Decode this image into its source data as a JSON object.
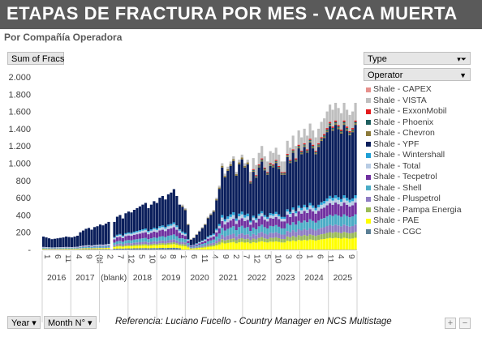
{
  "header": {
    "title": "ETAPAS DE FRACTURA POR MES -  VACA MUERTA",
    "subtitle": "Por Compañía Operadora"
  },
  "buttons": {
    "sum": "Sum of Fracs",
    "type": "Type",
    "operator": "Operator",
    "year": "Year",
    "month": "Month N°",
    "plus": "+",
    "minus": "−"
  },
  "footer": {
    "reference_prefix": "Referencia:  Luciano Fucello",
    "reference_suffix": " - Country Manager en NCS Multistage"
  },
  "colors": {
    "title_bg": "#5a5a5a",
    "button_bg": "#e6e6e6"
  },
  "chart_data": {
    "type": "bar",
    "stacked": true,
    "ylim": [
      0,
      2000
    ],
    "yticks": [
      "2.000",
      "1.800",
      "1.600",
      "1.400",
      "1.200",
      "1.000",
      "800",
      "600",
      "400",
      "200",
      "-"
    ],
    "grid": false,
    "legend_position": "right",
    "month_labels": [
      "1",
      "6",
      "11",
      "4",
      "9",
      "(bl",
      "2",
      "7",
      "12",
      "5",
      "10",
      "3",
      "8",
      "1",
      "6",
      "11",
      "4",
      "9",
      "2",
      "7",
      "12",
      "5",
      "10",
      "3",
      "8",
      "1",
      "6",
      "11",
      "4",
      "9"
    ],
    "year_groups": [
      {
        "label": "2016"
      },
      {
        "label": "2017"
      },
      {
        "label": "(blank)"
      },
      {
        "label": "2018"
      },
      {
        "label": "2019"
      },
      {
        "label": "2020"
      },
      {
        "label": "2021"
      },
      {
        "label": "2022"
      },
      {
        "label": "2023"
      },
      {
        "label": "2024"
      },
      {
        "label": "2025"
      }
    ],
    "series": [
      {
        "name": "Shale - CAPEX",
        "color": "#e6908c"
      },
      {
        "name": "Shale - VISTA",
        "color": "#bfbfbf"
      },
      {
        "name": "Shale - ExxonMobil",
        "color": "#e31a1c"
      },
      {
        "name": "Shale - Phoenix",
        "color": "#1f5f5f"
      },
      {
        "name": "Shale - Chevron",
        "color": "#8c7a3a"
      },
      {
        "name": "Shale - YPF",
        "color": "#0b1f5c"
      },
      {
        "name": "Shale - Wintershall",
        "color": "#1f9fd5"
      },
      {
        "name": "Shale - Total",
        "color": "#b8cce4"
      },
      {
        "name": "Shale - Tecpetrol",
        "color": "#7030a0"
      },
      {
        "name": "Shale - Shell",
        "color": "#4bacc6"
      },
      {
        "name": "Shale - Pluspetrol",
        "color": "#8e7cc3"
      },
      {
        "name": "Shale - Pampa Energia",
        "color": "#9bbb59"
      },
      {
        "name": "Shale - PAE",
        "color": "#ffff00"
      },
      {
        "name": "Shale - CGC",
        "color": "#5b7f95"
      }
    ],
    "approx_monthly_totals": [
      [
        2016,
        [
          150,
          140,
          130,
          120,
          125,
          130,
          135,
          140,
          150,
          145,
          140,
          150
        ]
      ],
      [
        2017,
        [
          160,
          200,
          220,
          240,
          250,
          230,
          260,
          270,
          290,
          280,
          300,
          320
        ]
      ],
      [
        "(blank)",
        [
          0
        ]
      ],
      [
        2018,
        [
          320,
          380,
          400,
          360,
          420,
          440,
          430,
          460,
          480,
          500,
          520,
          540
        ]
      ],
      [
        2019,
        [
          480,
          520,
          560,
          540,
          600,
          620,
          580,
          640,
          660,
          700,
          620,
          520
        ]
      ],
      [
        2020,
        [
          520,
          480,
          300,
          120,
          140,
          180,
          220,
          260,
          300,
          380,
          420,
          460
        ]
      ],
      [
        2021,
        [
          600,
          740,
          1000,
          880,
          960,
          1020,
          1080,
          900,
          1040,
          1100,
          1000,
          1040
        ]
      ],
      [
        2022,
        [
          900,
          1060,
          980,
          1120,
          1200,
          1080,
          1020,
          1140,
          1120,
          1180,
          1100,
          1020
        ]
      ],
      [
        2023,
        [
          1020,
          1260,
          1180,
          1320,
          1200,
          1380,
          1300,
          1400,
          1320,
          1460,
          1380,
          1300
        ]
      ],
      [
        2024,
        [
          1400,
          1480,
          1520,
          1600,
          1680,
          1620,
          1700,
          1640,
          1580,
          1700,
          1620,
          1560
        ]
      ],
      [
        2025,
        [
          1600,
          1700
        ]
      ]
    ]
  }
}
